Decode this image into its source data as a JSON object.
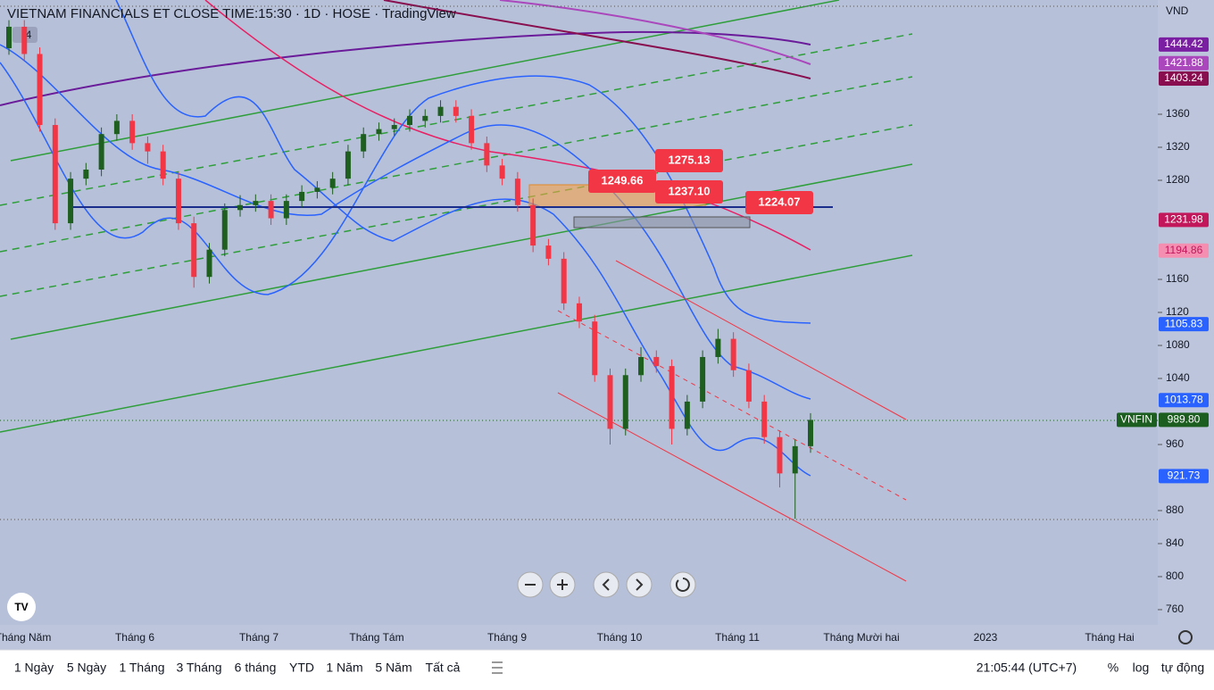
{
  "header": {
    "title": "VIETNAM FINANCIALS ET CLOSE TIME:15:30 · 1D · HOSE · TradingView",
    "badge": "4"
  },
  "axis": {
    "currency": "VND",
    "symbol": "VNFIN"
  },
  "annotations": [
    {
      "value": 1249.66
    },
    {
      "value": 1275.13
    },
    {
      "value": 1237.1,
      "label": "1237.10"
    },
    {
      "value": 1224.07
    }
  ],
  "price_labels": [
    {
      "value": 1444.42,
      "color": "#7b1fa2"
    },
    {
      "value": 1421.88,
      "color": "#ab47bc"
    },
    {
      "value": 1403.24,
      "color": "#880e4f"
    },
    {
      "value": 1231.98,
      "color": "#c2185b"
    },
    {
      "value": 1194.86,
      "color": "#f48fb1",
      "text_color": "#c2185b"
    },
    {
      "value": 1105.83,
      "color": "#2962ff"
    },
    {
      "value": 1013.78,
      "color": "#2962ff"
    },
    {
      "value": 989.8,
      "label": "989.80",
      "color": "#1b5e20"
    },
    {
      "value": 921.73,
      "color": "#2962ff"
    }
  ],
  "x_labels": [
    "Tháng Năm",
    "Tháng 6",
    "Tháng 7",
    "Tháng Tám",
    "Tháng 9",
    "Tháng 10",
    "Tháng 11",
    "Tháng Mười hai",
    "2023",
    "Tháng Hai"
  ],
  "toolbar": {
    "ranges": [
      "1 Ngày",
      "5 Ngày",
      "1 Tháng",
      "3 Tháng",
      "6 tháng",
      "YTD",
      "1 Năm",
      "5 Năm",
      "Tất cả"
    ],
    "clock": "21:05:44 (UTC+7)",
    "options": [
      "%",
      "log",
      "tự động"
    ]
  },
  "chart_data": {
    "type": "candlestick",
    "up_color": "#1e5e1e",
    "down_color": "#f23645",
    "ylim": [
      741.6,
      1498.4
    ],
    "yticks": [
      760,
      800,
      840,
      880,
      960,
      1040,
      1080,
      1120,
      1160,
      1280,
      1320,
      1360
    ],
    "ohlc": [
      [
        1440,
        1474,
        1432,
        1466
      ],
      [
        1466,
        1474,
        1425,
        1433
      ],
      [
        1433,
        1441,
        1339,
        1347
      ],
      [
        1347,
        1355,
        1220,
        1228
      ],
      [
        1228,
        1290,
        1220,
        1282
      ],
      [
        1282,
        1301,
        1274,
        1293
      ],
      [
        1293,
        1344,
        1285,
        1336
      ],
      [
        1336,
        1360,
        1328,
        1352
      ],
      [
        1352,
        1360,
        1317,
        1325
      ],
      [
        1325,
        1333,
        1300,
        1315
      ],
      [
        1315,
        1323,
        1274,
        1282
      ],
      [
        1282,
        1290,
        1220,
        1228
      ],
      [
        1228,
        1236,
        1150,
        1163
      ],
      [
        1163,
        1204,
        1155,
        1196
      ],
      [
        1196,
        1252,
        1188,
        1244
      ],
      [
        1244,
        1262,
        1236,
        1250
      ],
      [
        1250,
        1263,
        1242,
        1255
      ],
      [
        1255,
        1263,
        1226,
        1234
      ],
      [
        1234,
        1263,
        1226,
        1255
      ],
      [
        1255,
        1274,
        1247,
        1266
      ],
      [
        1266,
        1279,
        1258,
        1271
      ],
      [
        1271,
        1290,
        1263,
        1282
      ],
      [
        1282,
        1323,
        1274,
        1315
      ],
      [
        1315,
        1344,
        1307,
        1336
      ],
      [
        1336,
        1350,
        1328,
        1342
      ],
      [
        1342,
        1355,
        1334,
        1347
      ],
      [
        1347,
        1366,
        1339,
        1358
      ],
      [
        1352,
        1366,
        1344,
        1358
      ],
      [
        1358,
        1377,
        1350,
        1369
      ],
      [
        1369,
        1377,
        1350,
        1358
      ],
      [
        1358,
        1366,
        1317,
        1325
      ],
      [
        1325,
        1333,
        1290,
        1298
      ],
      [
        1298,
        1306,
        1274,
        1282
      ],
      [
        1282,
        1290,
        1242,
        1250
      ],
      [
        1250,
        1258,
        1193,
        1201
      ],
      [
        1201,
        1209,
        1177,
        1185
      ],
      [
        1185,
        1193,
        1123,
        1131
      ],
      [
        1131,
        1139,
        1101,
        1109
      ],
      [
        1109,
        1117,
        1036,
        1044
      ],
      [
        1044,
        1052,
        960,
        979
      ],
      [
        979,
        1052,
        971,
        1044
      ],
      [
        1044,
        1078,
        1036,
        1066
      ],
      [
        1066,
        1074,
        1047,
        1055
      ],
      [
        1055,
        1063,
        960,
        979
      ],
      [
        979,
        1020,
        971,
        1012
      ],
      [
        1012,
        1074,
        1004,
        1066
      ],
      [
        1066,
        1100,
        1058,
        1088
      ],
      [
        1088,
        1096,
        1042,
        1050
      ],
      [
        1050,
        1058,
        1004,
        1012
      ],
      [
        1012,
        1020,
        961,
        969
      ],
      [
        969,
        977,
        908,
        925
      ],
      [
        925,
        966,
        870,
        958
      ],
      [
        958,
        998,
        950,
        989.8
      ]
    ]
  }
}
